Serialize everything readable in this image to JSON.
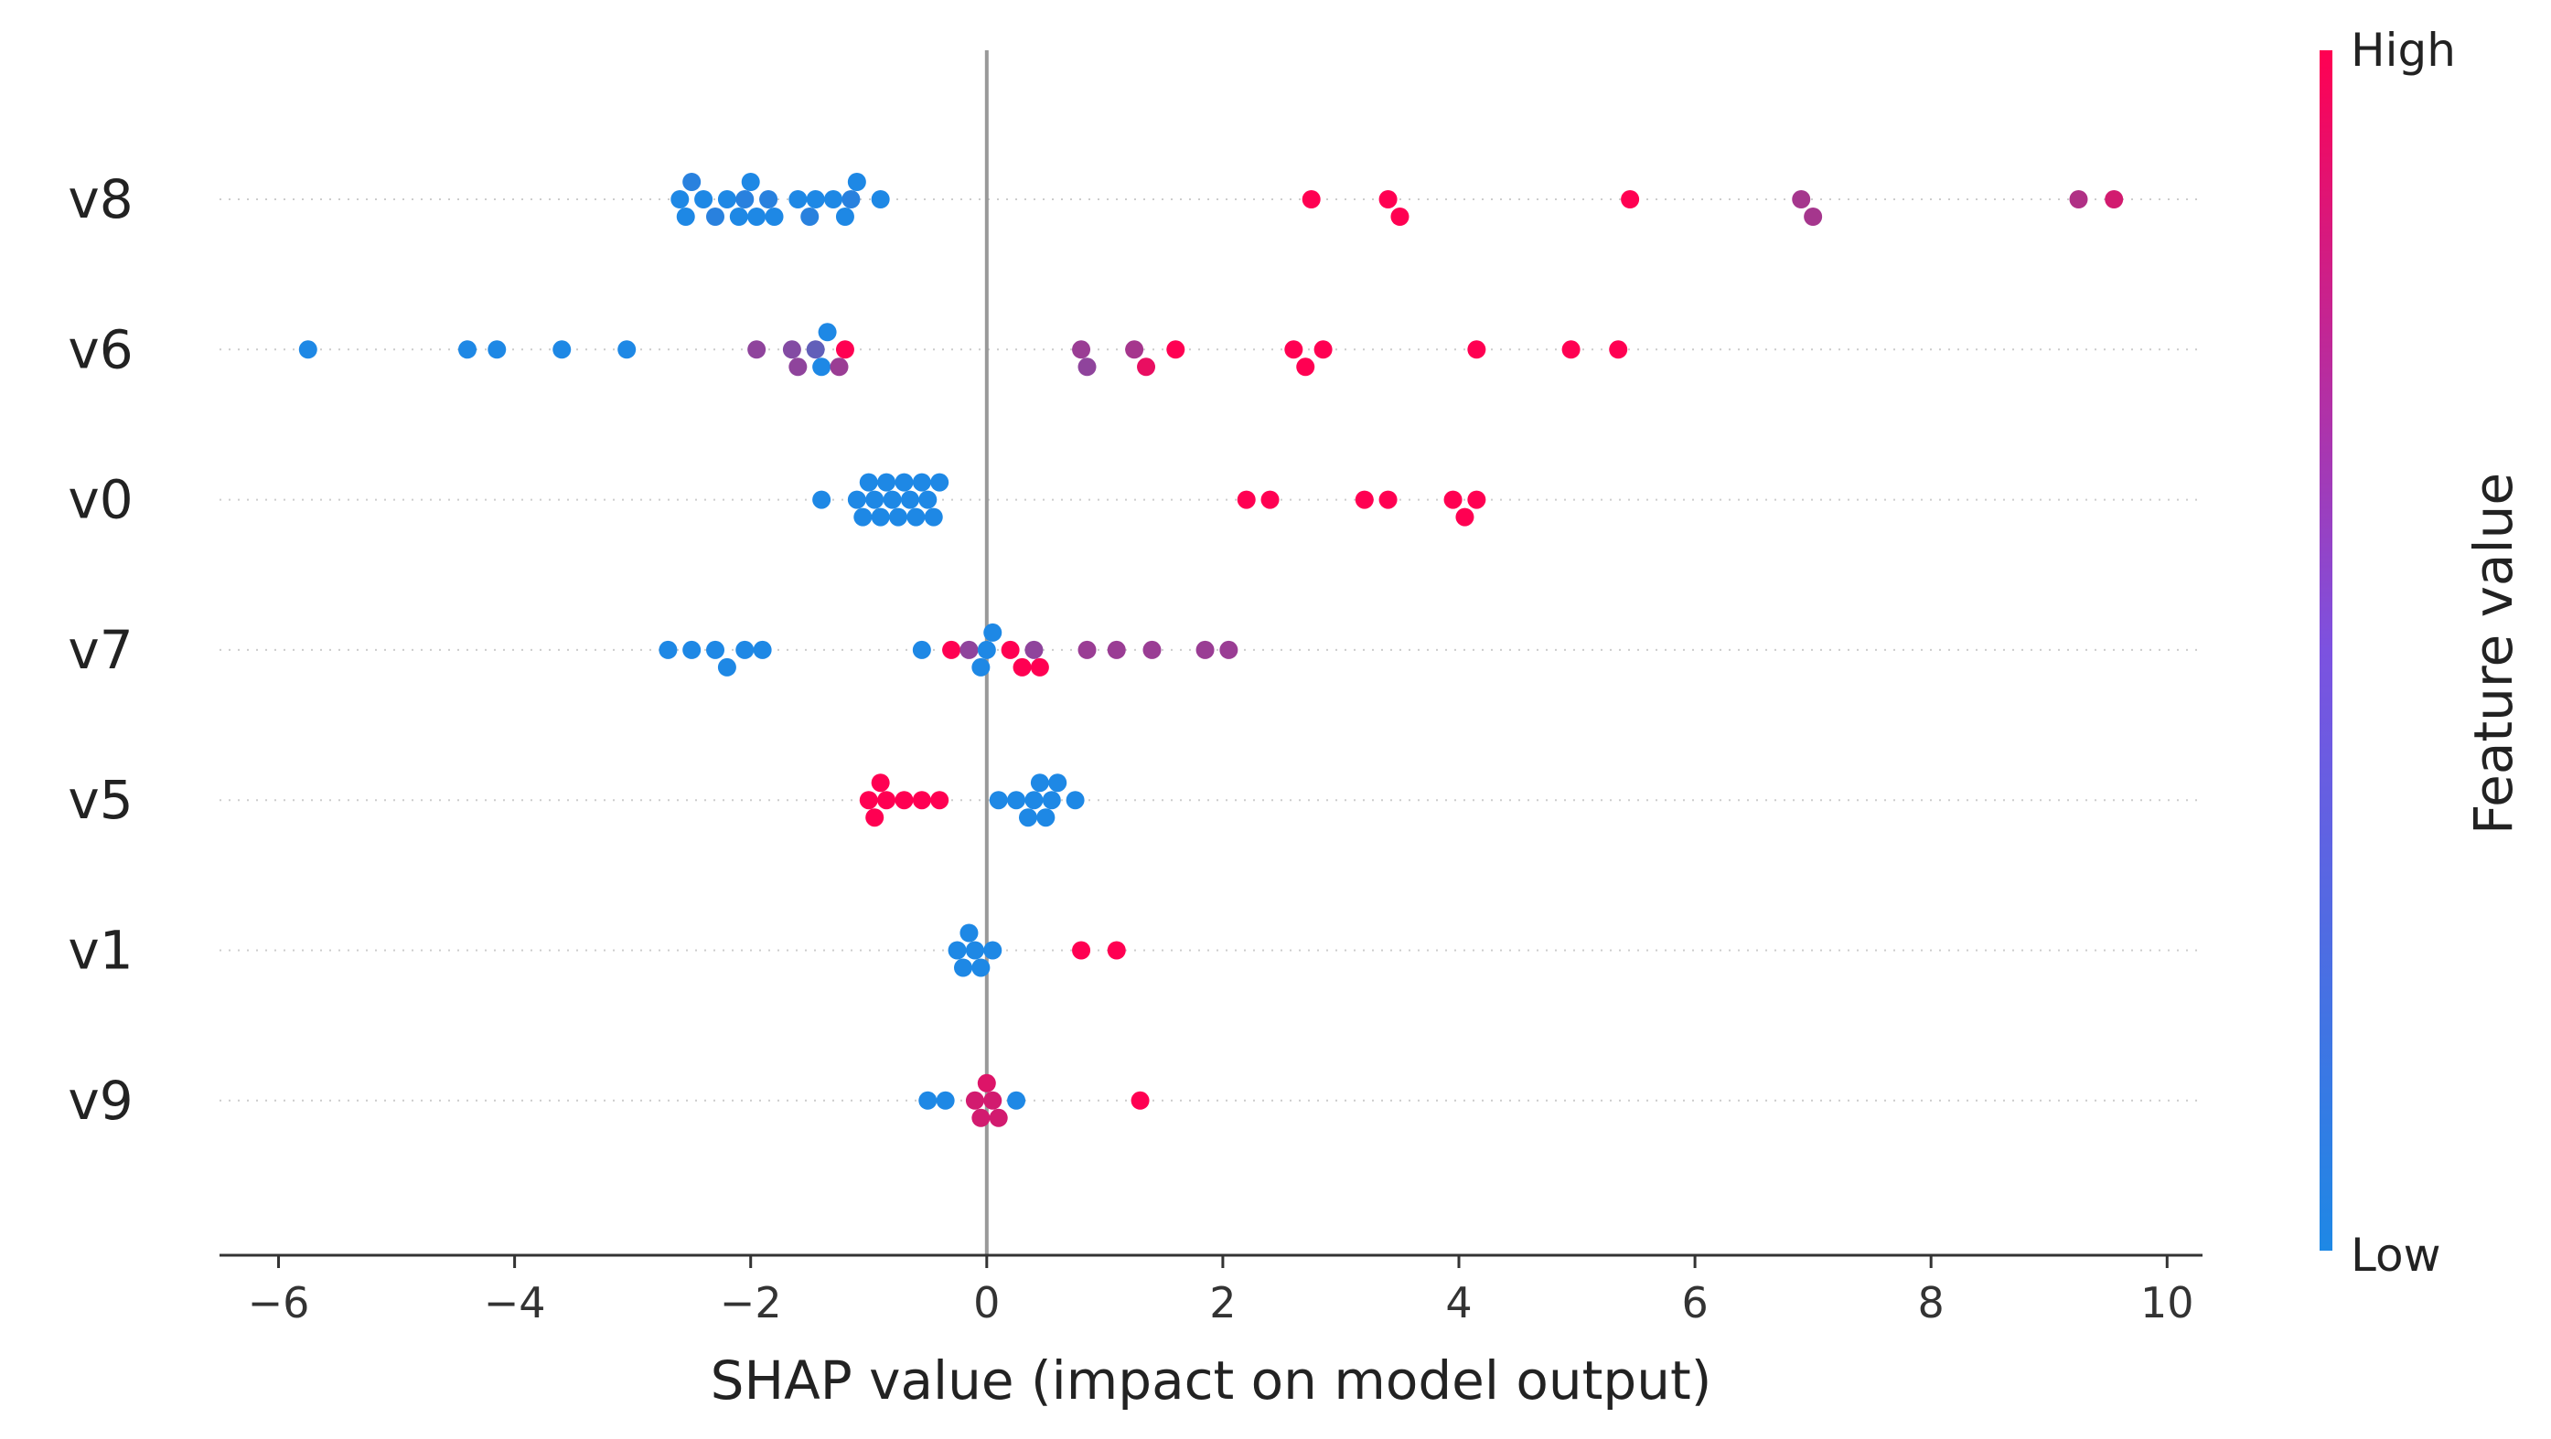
{
  "chart_data": {
    "type": "scatter",
    "subtype": "shap-beeswarm",
    "xlabel": "SHAP value (impact on model output)",
    "xlim": [
      -6.5,
      10.3
    ],
    "x_ticks": [
      -6,
      -4,
      -2,
      0,
      2,
      4,
      6,
      8,
      10
    ],
    "x_tick_labels": [
      "−6",
      "−4",
      "−2",
      "0",
      "2",
      "4",
      "6",
      "8",
      "10"
    ],
    "zero_line": 0,
    "grid": false,
    "legend": "colorbar-right",
    "colorbar": {
      "label": "Feature value",
      "high_label": "High",
      "low_label": "Low",
      "low_color": "#1e88e5",
      "high_color": "#ff0052"
    },
    "features": [
      {
        "name": "v8",
        "points": [
          {
            "x": -2.6,
            "v": 0.0
          },
          {
            "x": -2.55,
            "v": 0.0
          },
          {
            "x": -2.5,
            "v": 0.05
          },
          {
            "x": -2.4,
            "v": 0.0
          },
          {
            "x": -2.3,
            "v": 0.05
          },
          {
            "x": -2.2,
            "v": 0.0
          },
          {
            "x": -2.1,
            "v": 0.0
          },
          {
            "x": -2.05,
            "v": 0.05
          },
          {
            "x": -2.0,
            "v": 0.0
          },
          {
            "x": -1.95,
            "v": 0.0
          },
          {
            "x": -1.85,
            "v": 0.05
          },
          {
            "x": -1.8,
            "v": 0.0
          },
          {
            "x": -1.6,
            "v": 0.0
          },
          {
            "x": -1.5,
            "v": 0.05
          },
          {
            "x": -1.45,
            "v": 0.0
          },
          {
            "x": -1.3,
            "v": 0.0
          },
          {
            "x": -1.2,
            "v": 0.0
          },
          {
            "x": -1.15,
            "v": 0.05
          },
          {
            "x": -1.1,
            "v": 0.0
          },
          {
            "x": -0.9,
            "v": 0.0
          },
          {
            "x": 2.75,
            "v": 1.0
          },
          {
            "x": 3.4,
            "v": 1.0
          },
          {
            "x": 3.5,
            "v": 1.0
          },
          {
            "x": 5.45,
            "v": 1.0
          },
          {
            "x": 6.9,
            "v": 0.6
          },
          {
            "x": 7.0,
            "v": 0.6
          },
          {
            "x": 9.25,
            "v": 0.65
          },
          {
            "x": 9.55,
            "v": 0.8
          }
        ]
      },
      {
        "name": "v6",
        "points": [
          {
            "x": -5.75,
            "v": 0.0
          },
          {
            "x": -4.4,
            "v": 0.0
          },
          {
            "x": -4.15,
            "v": 0.0
          },
          {
            "x": -3.6,
            "v": 0.0
          },
          {
            "x": -3.05,
            "v": 0.0
          },
          {
            "x": -1.95,
            "v": 0.5
          },
          {
            "x": -1.65,
            "v": 0.45
          },
          {
            "x": -1.6,
            "v": 0.5
          },
          {
            "x": -1.45,
            "v": 0.3
          },
          {
            "x": -1.4,
            "v": 0.0
          },
          {
            "x": -1.35,
            "v": 0.0
          },
          {
            "x": -1.2,
            "v": 1.0
          },
          {
            "x": -1.25,
            "v": 0.55
          },
          {
            "x": 0.8,
            "v": 0.55
          },
          {
            "x": 0.85,
            "v": 0.5
          },
          {
            "x": 1.25,
            "v": 0.6
          },
          {
            "x": 1.35,
            "v": 0.9
          },
          {
            "x": 1.6,
            "v": 1.0
          },
          {
            "x": 2.6,
            "v": 1.0
          },
          {
            "x": 2.7,
            "v": 1.0
          },
          {
            "x": 2.85,
            "v": 1.0
          },
          {
            "x": 4.15,
            "v": 1.0
          },
          {
            "x": 4.95,
            "v": 1.0
          },
          {
            "x": 5.35,
            "v": 1.0
          }
        ]
      },
      {
        "name": "v0",
        "points": [
          {
            "x": -1.4,
            "v": 0.0
          },
          {
            "x": -1.1,
            "v": 0.0
          },
          {
            "x": -1.05,
            "v": 0.0
          },
          {
            "x": -1.0,
            "v": 0.0
          },
          {
            "x": -0.95,
            "v": 0.0
          },
          {
            "x": -0.9,
            "v": 0.0
          },
          {
            "x": -0.85,
            "v": 0.0
          },
          {
            "x": -0.8,
            "v": 0.0
          },
          {
            "x": -0.75,
            "v": 0.0
          },
          {
            "x": -0.7,
            "v": 0.0
          },
          {
            "x": -0.65,
            "v": 0.0
          },
          {
            "x": -0.6,
            "v": 0.0
          },
          {
            "x": -0.55,
            "v": 0.0
          },
          {
            "x": -0.5,
            "v": 0.0
          },
          {
            "x": -0.45,
            "v": 0.0
          },
          {
            "x": -0.4,
            "v": 0.0
          },
          {
            "x": 2.2,
            "v": 1.0
          },
          {
            "x": 2.4,
            "v": 1.0
          },
          {
            "x": 3.2,
            "v": 1.0
          },
          {
            "x": 3.4,
            "v": 1.0
          },
          {
            "x": 3.95,
            "v": 1.0
          },
          {
            "x": 4.05,
            "v": 1.0
          },
          {
            "x": 4.15,
            "v": 1.0
          }
        ]
      },
      {
        "name": "v7",
        "points": [
          {
            "x": -2.7,
            "v": 0.0
          },
          {
            "x": -2.5,
            "v": 0.0
          },
          {
            "x": -2.3,
            "v": 0.0
          },
          {
            "x": -2.2,
            "v": 0.0
          },
          {
            "x": -2.05,
            "v": 0.0
          },
          {
            "x": -1.9,
            "v": 0.0
          },
          {
            "x": -0.55,
            "v": 0.0
          },
          {
            "x": -0.3,
            "v": 1.0
          },
          {
            "x": -0.15,
            "v": 0.5
          },
          {
            "x": -0.05,
            "v": 0.0
          },
          {
            "x": 0.0,
            "v": 0.0
          },
          {
            "x": 0.05,
            "v": 0.0
          },
          {
            "x": 0.2,
            "v": 1.0
          },
          {
            "x": 0.3,
            "v": 1.0
          },
          {
            "x": 0.4,
            "v": 0.5
          },
          {
            "x": 0.45,
            "v": 1.0
          },
          {
            "x": 0.85,
            "v": 0.55
          },
          {
            "x": 1.1,
            "v": 0.55
          },
          {
            "x": 1.4,
            "v": 0.55
          },
          {
            "x": 1.85,
            "v": 0.55
          },
          {
            "x": 2.05,
            "v": 0.55
          }
        ]
      },
      {
        "name": "v5",
        "points": [
          {
            "x": -1.0,
            "v": 1.0
          },
          {
            "x": -0.95,
            "v": 1.0
          },
          {
            "x": -0.9,
            "v": 1.0
          },
          {
            "x": -0.85,
            "v": 1.0
          },
          {
            "x": -0.7,
            "v": 1.0
          },
          {
            "x": -0.55,
            "v": 1.0
          },
          {
            "x": -0.4,
            "v": 1.0
          },
          {
            "x": 0.1,
            "v": 0.0
          },
          {
            "x": 0.25,
            "v": 0.0
          },
          {
            "x": 0.35,
            "v": 0.0
          },
          {
            "x": 0.4,
            "v": 0.0
          },
          {
            "x": 0.45,
            "v": 0.0
          },
          {
            "x": 0.5,
            "v": 0.0
          },
          {
            "x": 0.55,
            "v": 0.0
          },
          {
            "x": 0.6,
            "v": 0.0
          },
          {
            "x": 0.75,
            "v": 0.0
          }
        ]
      },
      {
        "name": "v1",
        "points": [
          {
            "x": -0.25,
            "v": 0.0
          },
          {
            "x": -0.2,
            "v": 0.0
          },
          {
            "x": -0.15,
            "v": 0.0
          },
          {
            "x": -0.1,
            "v": 0.0
          },
          {
            "x": -0.05,
            "v": 0.0
          },
          {
            "x": 0.05,
            "v": 0.0
          },
          {
            "x": 0.8,
            "v": 1.0
          },
          {
            "x": 1.1,
            "v": 1.0
          }
        ]
      },
      {
        "name": "v9",
        "points": [
          {
            "x": -0.5,
            "v": 0.0
          },
          {
            "x": -0.35,
            "v": 0.0
          },
          {
            "x": -0.1,
            "v": 0.8
          },
          {
            "x": -0.05,
            "v": 0.8
          },
          {
            "x": 0.0,
            "v": 0.85
          },
          {
            "x": 0.05,
            "v": 0.8
          },
          {
            "x": 0.1,
            "v": 0.8
          },
          {
            "x": 0.25,
            "v": 0.0
          },
          {
            "x": 1.3,
            "v": 1.0
          }
        ]
      }
    ]
  }
}
